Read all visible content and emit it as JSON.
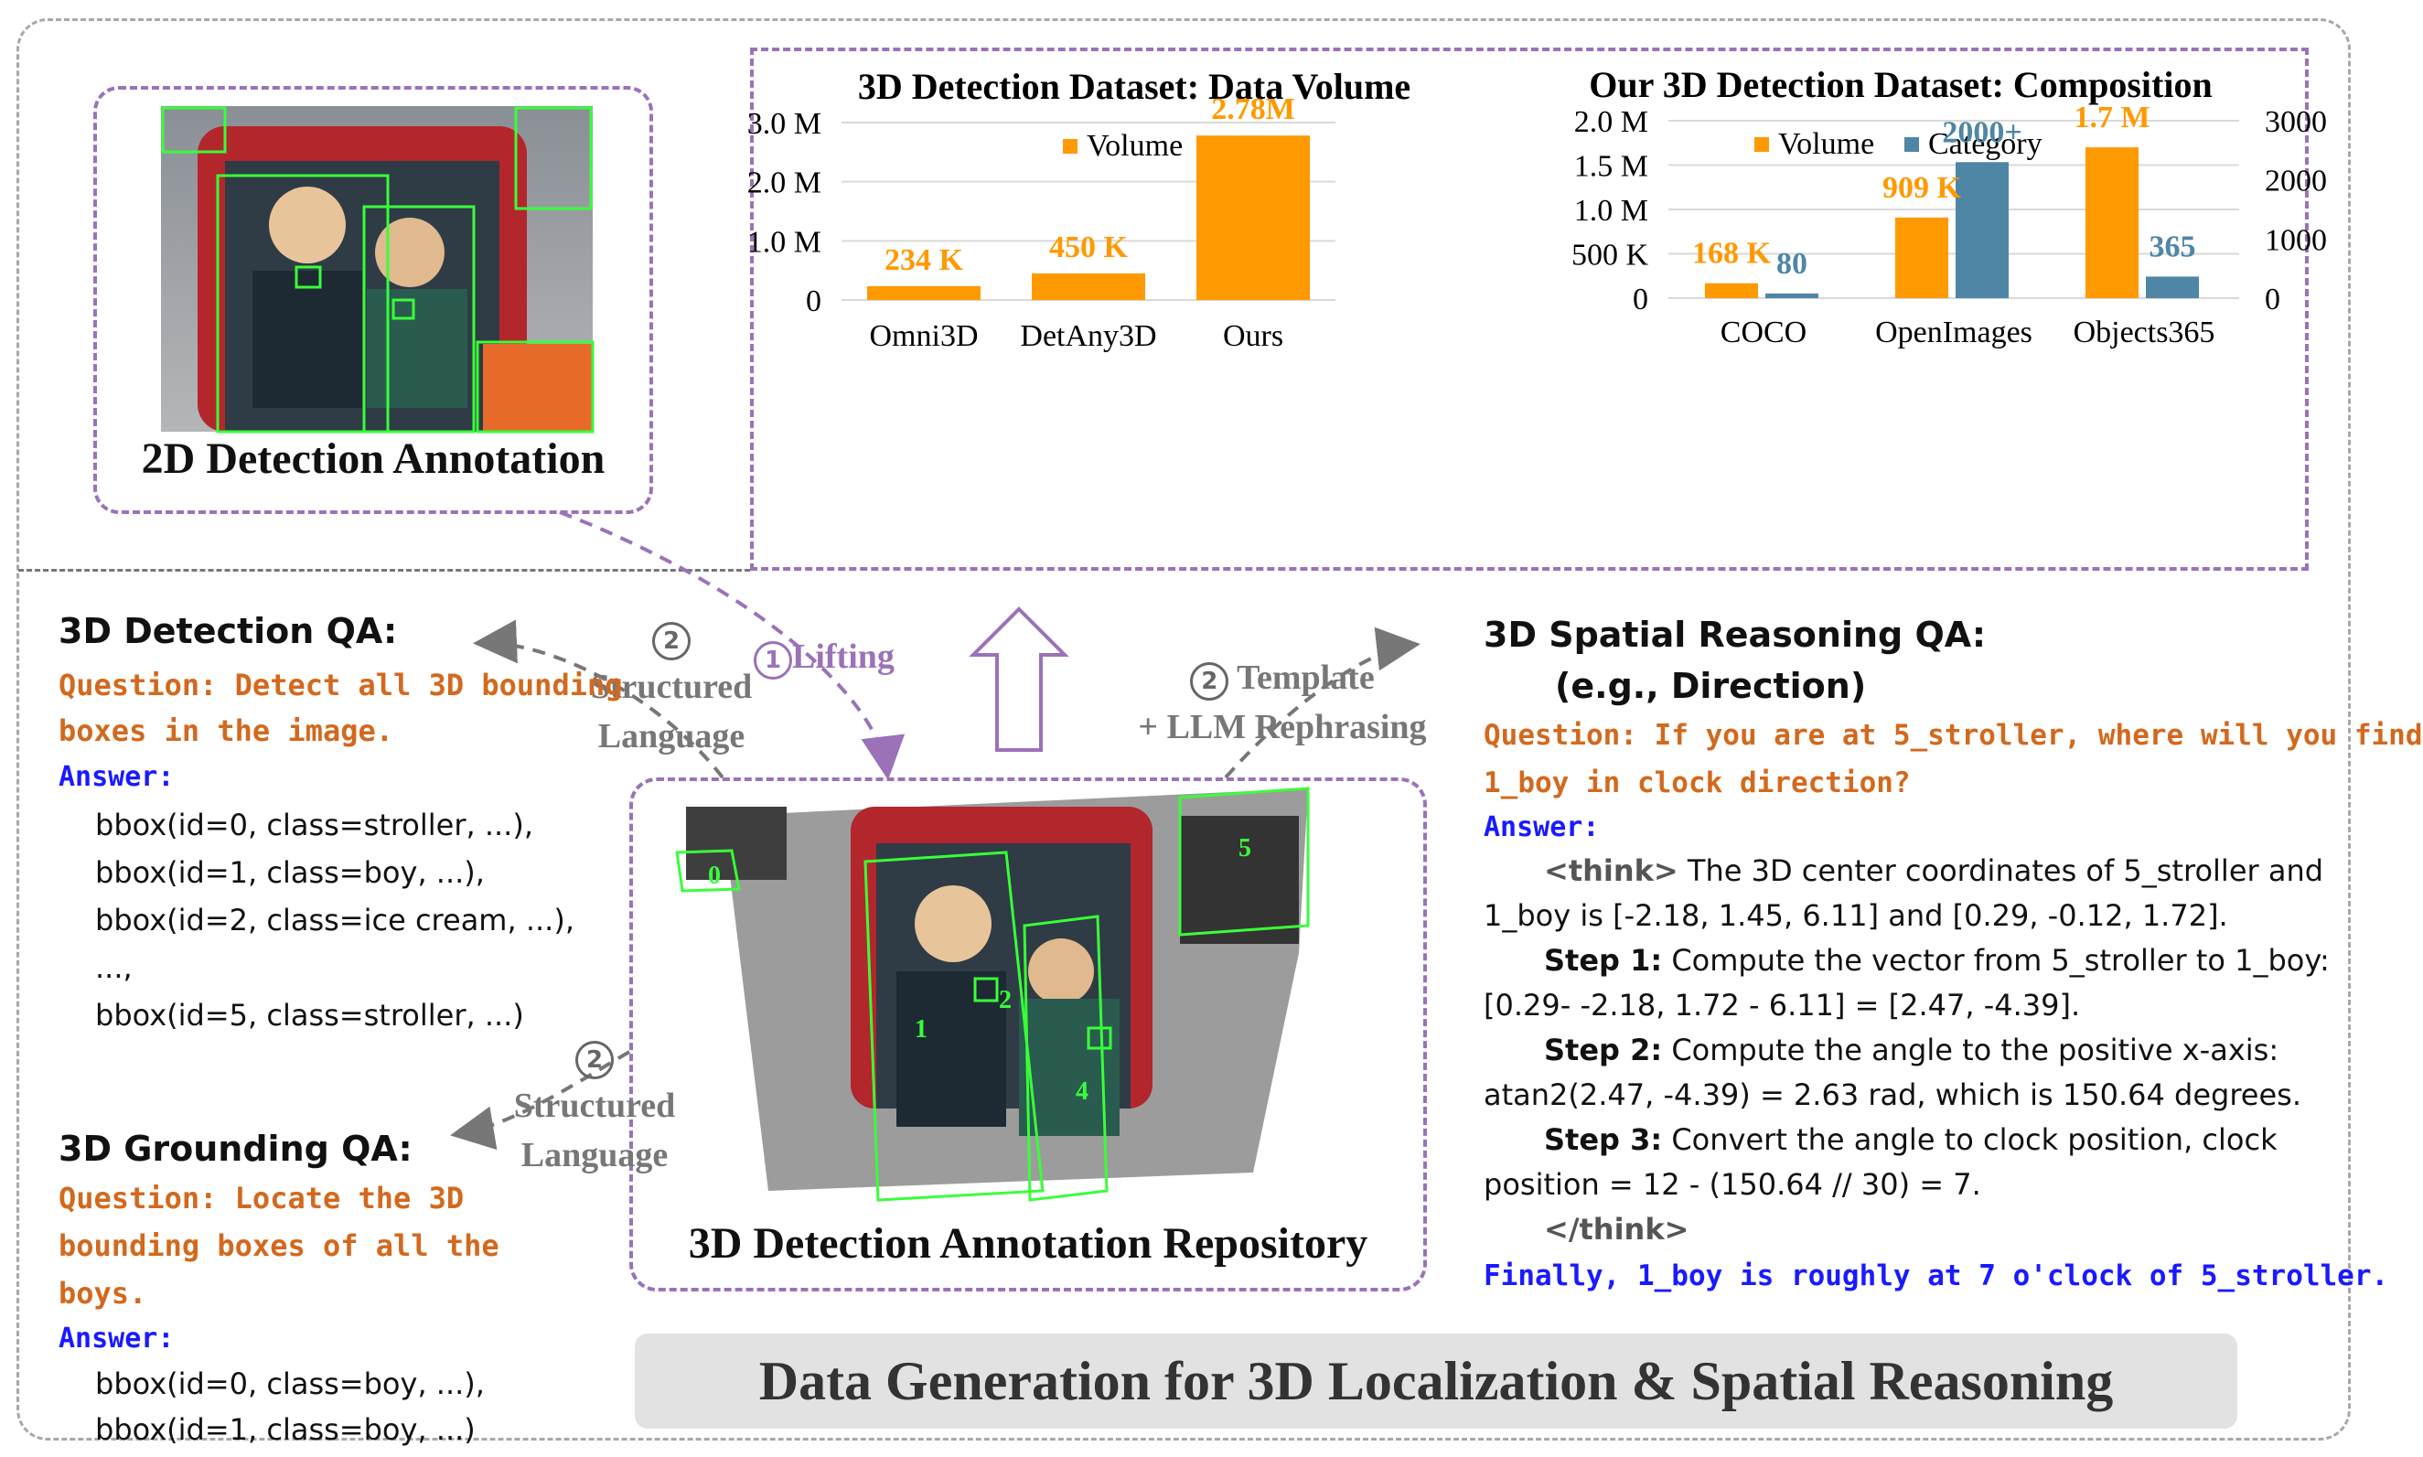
{
  "chart_data": [
    {
      "type": "bar",
      "title": "3D Detection Dataset: Data Volume",
      "legend": [
        "Volume"
      ],
      "categories": [
        "Omni3D",
        "DetAny3D",
        "Ours"
      ],
      "values": [
        0.234,
        0.45,
        2.78
      ],
      "value_labels": [
        "234 K",
        "450 K",
        "2.78M"
      ],
      "ylim": [
        0,
        3.0
      ],
      "yticks": [
        "0",
        "1.0 M",
        "2.0 M",
        "3.0 M"
      ],
      "colors": {
        "volume": "#ff9900"
      }
    },
    {
      "type": "bar",
      "title": "Our 3D Detection Dataset: Composition",
      "legend": [
        "Volume",
        "Category"
      ],
      "categories": [
        "COCO",
        "OpenImages",
        "Objects365"
      ],
      "series": [
        {
          "name": "Volume",
          "values": [
            0.168,
            0.909,
            1.7
          ],
          "labels": [
            "168 K",
            "909 K",
            "1.7 M"
          ],
          "axis": "left",
          "color": "#ff9900"
        },
        {
          "name": "Category",
          "values": [
            80,
            2300,
            365
          ],
          "labels": [
            "80",
            "2000+",
            "365"
          ],
          "axis": "right",
          "color": "#4f86a6"
        }
      ],
      "ylim_left": [
        0,
        2.0
      ],
      "yticks_left": [
        "0",
        "500 K",
        "1.0 M",
        "1.5 M",
        "2.0 M"
      ],
      "ylim_right": [
        0,
        3000
      ],
      "yticks_right": [
        "0",
        "1000",
        "2000",
        "3000"
      ]
    }
  ],
  "annot2d": {
    "label": "2D Detection Annotation"
  },
  "repo": {
    "label": "3D Detection Annotation Repository",
    "box_labels": [
      "0",
      "1",
      "2",
      "4",
      "5"
    ]
  },
  "lifting": {
    "num": "1",
    "label": "Lifting"
  },
  "structured_top": {
    "num": "2",
    "line1": "Structured",
    "line2": "Language"
  },
  "structured_bottom": {
    "num": "2",
    "line1": "Structured",
    "line2": "Language"
  },
  "template": {
    "num": "2",
    "line1": "Template",
    "line2": "+ LLM Rephrasing"
  },
  "detqa": {
    "title": "3D Detection QA:",
    "question_line1": "Question: Detect all 3D bounding",
    "question_line2": "boxes in the image.",
    "answer": "Answer:",
    "lines": [
      "bbox(id=0, class=stroller, ...),",
      "bbox(id=1, class=boy, ...),",
      "bbox(id=2, class=ice cream, ...),",
      "...,",
      "bbox(id=5, class=stroller, ...)"
    ]
  },
  "groundqa": {
    "title": "3D Grounding QA:",
    "question_line1": "Question: Locate the 3D",
    "question_line2": "bounding boxes of all the boys.",
    "answer": "Answer:",
    "lines": [
      "bbox(id=0, class=boy, ...),",
      "bbox(id=1, class=boy, ...)"
    ]
  },
  "spatialqa": {
    "title_line1": "3D Spatial Reasoning QA:",
    "title_line2": "(e.g., Direction)",
    "question_line1": "Question: If you are at 5_stroller, where will you find",
    "question_line2": "1_boy in clock direction?",
    "answer": "Answer:",
    "think_open": "<think>",
    "l1": "The 3D center coordinates of 5_stroller and",
    "l2": "1_boy is [-2.18, 1.45, 6.11] and [0.29, -0.12, 1.72].",
    "step1_label": "Step 1:",
    "step1": "Compute the vector from 5_stroller to 1_boy:",
    "step1b": "[0.29- -2.18, 1.72 - 6.11] = [2.47, -4.39].",
    "step2_label": "Step 2:",
    "step2": "Compute the angle to the positive x-axis:",
    "step2b": "atan2(2.47, -4.39) = 2.63 rad, which is 150.64 degrees.",
    "step3_label": "Step 3:",
    "step3": "Convert the angle to clock position, clock",
    "step3b": "position = 12 - (150.64 // 30) = 7.",
    "think_close": "</think>",
    "final": "Finally, 1_boy is roughly at 7 o'clock of 5_stroller."
  },
  "banner": "Data Generation for 3D Localization & Spatial Reasoning"
}
